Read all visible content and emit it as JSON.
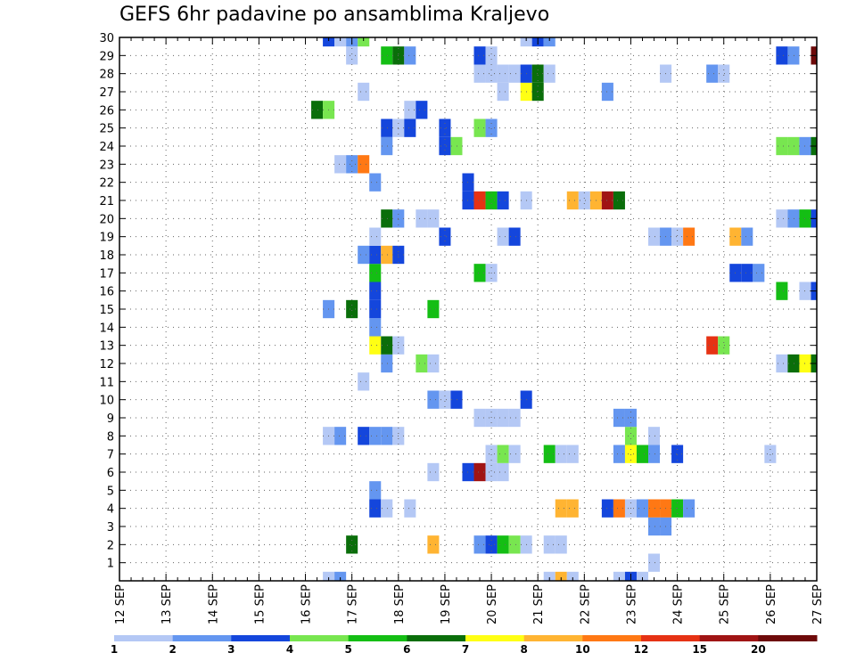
{
  "chart_data": {
    "type": "heatmap",
    "title": "GEFS 6hr padavine po ansamblima Kraljevo",
    "x_tick_labels": [
      "12 SEP",
      "13 SEP",
      "14 SEP",
      "15 SEP",
      "16 SEP",
      "17 SEP",
      "18 SEP",
      "19 SEP",
      "20 SEP",
      "21 SEP",
      "22 SEP",
      "23 SEP",
      "24 SEP",
      "25 SEP",
      "26 SEP",
      "27 SEP"
    ],
    "y_tick_labels": [
      "1",
      "2",
      "3",
      "4",
      "5",
      "6",
      "7",
      "8",
      "9",
      "10",
      "11",
      "12",
      "13",
      "14",
      "15",
      "16",
      "17",
      "18",
      "19",
      "20",
      "21",
      "22",
      "23",
      "24",
      "25",
      "26",
      "27",
      "28",
      "29",
      "30"
    ],
    "xlim": [
      0,
      60
    ],
    "ylim": [
      0,
      30
    ],
    "grid": true,
    "legend_placement": "bottom",
    "color_bins": [
      {
        "color": "#b4c8f5"
      },
      {
        "color": "#6496f0"
      },
      {
        "color": "#1446dc"
      },
      {
        "color": "#78e650"
      },
      {
        "color": "#14be14"
      },
      {
        "color": "#0a6e0a"
      },
      {
        "color": "#ffff14"
      },
      {
        "color": "#ffb432"
      },
      {
        "color": "#ff7814"
      },
      {
        "color": "#e63214"
      },
      {
        "color": "#a01414"
      },
      {
        "color": "#6e0a0a"
      }
    ],
    "legend_labels": [
      "1",
      "2",
      "3",
      "4",
      "5",
      "6",
      "7",
      "8",
      "10",
      "12",
      "15",
      "20"
    ],
    "cells": [
      [
        18,
        0,
        1
      ],
      [
        19,
        0,
        2
      ],
      [
        37,
        0,
        1
      ],
      [
        38,
        0,
        8
      ],
      [
        39,
        0,
        1
      ],
      [
        43,
        0,
        1
      ],
      [
        44,
        0,
        3
      ],
      [
        45,
        0,
        1
      ],
      [
        46,
        1,
        1
      ],
      [
        20,
        2,
        6
      ],
      [
        27,
        2,
        8
      ],
      [
        31,
        2,
        2
      ],
      [
        32,
        2,
        3
      ],
      [
        33,
        2,
        5
      ],
      [
        34,
        2,
        4
      ],
      [
        35,
        2,
        1
      ],
      [
        37,
        2,
        1
      ],
      [
        38,
        2,
        1
      ],
      [
        46,
        3,
        2
      ],
      [
        47,
        3,
        2
      ],
      [
        22,
        4,
        3
      ],
      [
        23,
        4,
        1
      ],
      [
        25,
        4,
        1
      ],
      [
        38,
        4,
        8
      ],
      [
        39,
        4,
        8
      ],
      [
        42,
        4,
        3
      ],
      [
        43,
        4,
        9
      ],
      [
        44,
        4,
        1
      ],
      [
        45,
        4,
        2
      ],
      [
        46,
        4,
        9
      ],
      [
        47,
        4,
        9
      ],
      [
        48,
        4,
        5
      ],
      [
        49,
        4,
        2
      ],
      [
        22,
        5,
        2
      ],
      [
        27,
        6,
        1
      ],
      [
        30,
        6,
        3
      ],
      [
        31,
        6,
        11
      ],
      [
        32,
        6,
        1
      ],
      [
        33,
        6,
        1
      ],
      [
        32,
        7,
        1
      ],
      [
        33,
        7,
        4
      ],
      [
        34,
        7,
        1
      ],
      [
        37,
        7,
        5
      ],
      [
        38,
        7,
        1
      ],
      [
        39,
        7,
        1
      ],
      [
        43,
        7,
        2
      ],
      [
        44,
        7,
        7
      ],
      [
        45,
        7,
        5
      ],
      [
        46,
        7,
        2
      ],
      [
        48,
        7,
        3
      ],
      [
        56,
        7,
        1
      ],
      [
        18,
        8,
        1
      ],
      [
        19,
        8,
        2
      ],
      [
        21,
        8,
        3
      ],
      [
        22,
        8,
        2
      ],
      [
        23,
        8,
        2
      ],
      [
        24,
        8,
        1
      ],
      [
        44,
        8,
        4
      ],
      [
        46,
        8,
        1
      ],
      [
        31,
        9,
        1
      ],
      [
        32,
        9,
        1
      ],
      [
        33,
        9,
        1
      ],
      [
        34,
        9,
        1
      ],
      [
        43,
        9,
        2
      ],
      [
        44,
        9,
        2
      ],
      [
        27,
        10,
        2
      ],
      [
        28,
        10,
        1
      ],
      [
        29,
        10,
        3
      ],
      [
        35,
        10,
        3
      ],
      [
        21,
        11,
        1
      ],
      [
        23,
        12,
        2
      ],
      [
        26,
        12,
        4
      ],
      [
        27,
        12,
        1
      ],
      [
        57,
        12,
        1
      ],
      [
        58,
        12,
        6
      ],
      [
        59,
        12,
        7
      ],
      [
        60,
        12,
        6
      ],
      [
        22,
        13,
        7
      ],
      [
        23,
        13,
        6
      ],
      [
        24,
        13,
        1
      ],
      [
        51,
        13,
        10
      ],
      [
        52,
        13,
        4
      ],
      [
        22,
        14,
        2
      ],
      [
        18,
        15,
        2
      ],
      [
        20,
        15,
        6
      ],
      [
        22,
        15,
        3
      ],
      [
        27,
        15,
        5
      ],
      [
        22,
        16,
        3
      ],
      [
        57,
        16,
        5
      ],
      [
        59,
        16,
        1
      ],
      [
        60,
        16,
        3
      ],
      [
        22,
        17,
        5
      ],
      [
        31,
        17,
        5
      ],
      [
        32,
        17,
        1
      ],
      [
        53,
        17,
        3
      ],
      [
        54,
        17,
        3
      ],
      [
        55,
        17,
        2
      ],
      [
        21,
        18,
        2
      ],
      [
        22,
        18,
        3
      ],
      [
        23,
        18,
        8
      ],
      [
        24,
        18,
        3
      ],
      [
        22,
        19,
        1
      ],
      [
        28,
        19,
        3
      ],
      [
        33,
        19,
        1
      ],
      [
        34,
        19,
        3
      ],
      [
        46,
        19,
        1
      ],
      [
        47,
        19,
        2
      ],
      [
        48,
        19,
        1
      ],
      [
        49,
        19,
        9
      ],
      [
        53,
        19,
        8
      ],
      [
        54,
        19,
        2
      ],
      [
        23,
        20,
        6
      ],
      [
        24,
        20,
        2
      ],
      [
        26,
        20,
        1
      ],
      [
        27,
        20,
        1
      ],
      [
        57,
        20,
        1
      ],
      [
        58,
        20,
        2
      ],
      [
        59,
        20,
        5
      ],
      [
        60,
        20,
        3
      ],
      [
        30,
        21,
        3
      ],
      [
        31,
        21,
        10
      ],
      [
        32,
        21,
        5
      ],
      [
        33,
        21,
        3
      ],
      [
        35,
        21,
        1
      ],
      [
        39,
        21,
        8
      ],
      [
        40,
        21,
        1
      ],
      [
        41,
        21,
        8
      ],
      [
        42,
        21,
        11
      ],
      [
        43,
        21,
        6
      ],
      [
        22,
        22,
        2
      ],
      [
        30,
        22,
        3
      ],
      [
        19,
        23,
        1
      ],
      [
        20,
        23,
        2
      ],
      [
        21,
        23,
        9
      ],
      [
        23,
        24,
        2
      ],
      [
        28,
        24,
        3
      ],
      [
        29,
        24,
        4
      ],
      [
        57,
        24,
        4
      ],
      [
        58,
        24,
        4
      ],
      [
        59,
        24,
        2
      ],
      [
        60,
        24,
        6
      ],
      [
        23,
        25,
        3
      ],
      [
        24,
        25,
        1
      ],
      [
        25,
        25,
        3
      ],
      [
        28,
        25,
        3
      ],
      [
        31,
        25,
        4
      ],
      [
        32,
        25,
        2
      ],
      [
        17,
        26,
        6
      ],
      [
        18,
        26,
        4
      ],
      [
        25,
        26,
        1
      ],
      [
        26,
        26,
        3
      ],
      [
        21,
        27,
        1
      ],
      [
        33,
        27,
        1
      ],
      [
        35,
        27,
        7
      ],
      [
        36,
        27,
        6
      ],
      [
        42,
        27,
        2
      ],
      [
        31,
        28,
        1
      ],
      [
        32,
        28,
        1
      ],
      [
        33,
        28,
        1
      ],
      [
        34,
        28,
        1
      ],
      [
        35,
        28,
        3
      ],
      [
        36,
        28,
        6
      ],
      [
        37,
        28,
        1
      ],
      [
        47,
        28,
        1
      ],
      [
        51,
        28,
        2
      ],
      [
        52,
        28,
        1
      ],
      [
        20,
        29,
        1
      ],
      [
        23,
        29,
        5
      ],
      [
        24,
        29,
        6
      ],
      [
        25,
        29,
        2
      ],
      [
        31,
        29,
        3
      ],
      [
        32,
        29,
        1
      ],
      [
        57,
        29,
        3
      ],
      [
        58,
        29,
        2
      ],
      [
        60,
        29,
        12
      ],
      [
        18,
        30,
        3
      ],
      [
        19,
        30,
        1
      ],
      [
        20,
        30,
        2
      ],
      [
        21,
        30,
        4
      ],
      [
        35,
        30,
        1
      ],
      [
        36,
        30,
        3
      ],
      [
        37,
        30,
        2
      ]
    ]
  }
}
